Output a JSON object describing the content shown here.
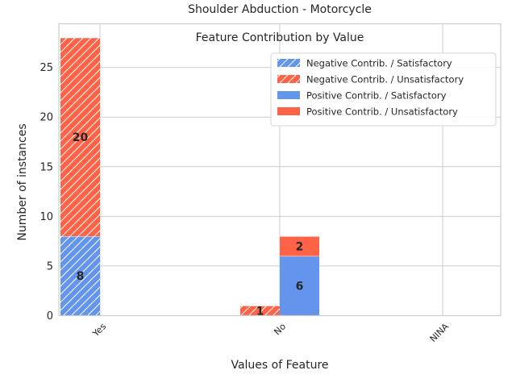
{
  "chart_data": {
    "type": "bar",
    "stacked": true,
    "title_lines": [
      "Shoulder Abduction - Motorcycle",
      "Feature Contribution by Value"
    ],
    "xlabel": "Values of Feature",
    "ylabel": "Number of instances",
    "categories": [
      "Yes",
      "No",
      "NINA"
    ],
    "ylim": [
      0,
      29.4
    ],
    "yticks": [
      0,
      5,
      10,
      15,
      20,
      25
    ],
    "grid": true,
    "legend_position": "upper-right",
    "colors": {
      "satisfactory": "#6495ED",
      "unsatisfactory": "#FF6347",
      "hatch": "#ffffff"
    },
    "groups": [
      {
        "name": "Negative Contrib.",
        "hatched": true,
        "offset": "left",
        "series": [
          {
            "name": "Negative Contrib. / Satisfactory",
            "class": "satisfactory",
            "values": [
              8,
              0,
              0
            ]
          },
          {
            "name": "Negative Contrib. / Unsatisfactory",
            "class": "unsatisfactory",
            "values": [
              20,
              1,
              0
            ]
          }
        ]
      },
      {
        "name": "Positive Contrib.",
        "hatched": false,
        "offset": "right",
        "series": [
          {
            "name": "Positive Contrib. / Satisfactory",
            "class": "satisfactory",
            "values": [
              0,
              6,
              0
            ]
          },
          {
            "name": "Positive Contrib. / Unsatisfactory",
            "class": "unsatisfactory",
            "values": [
              0,
              2,
              0
            ]
          }
        ]
      }
    ]
  }
}
